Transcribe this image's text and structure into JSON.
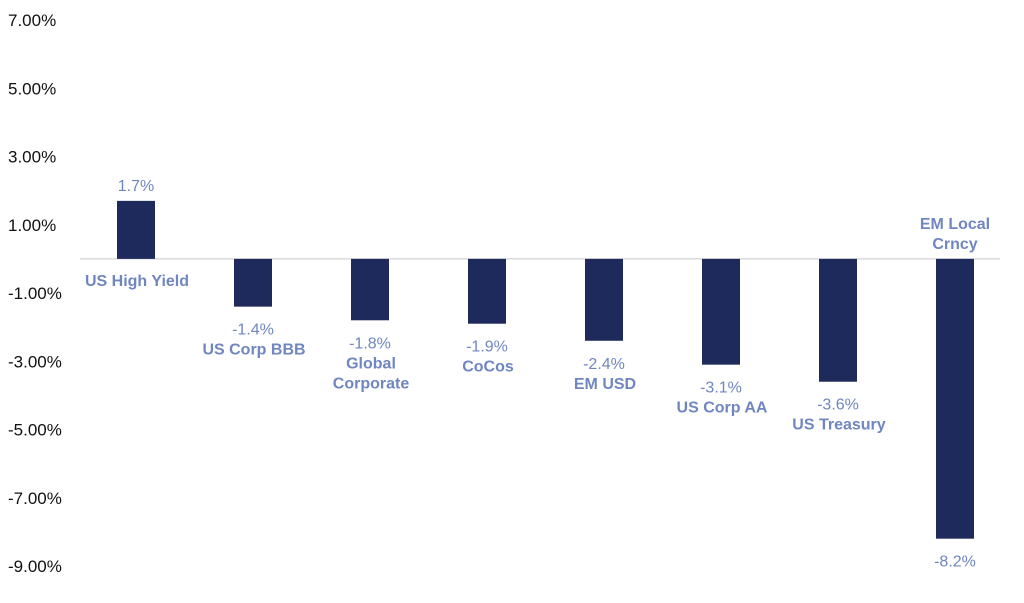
{
  "chart_data": {
    "type": "bar",
    "title": "",
    "xlabel": "",
    "ylabel": "",
    "ylim": [
      -9,
      7
    ],
    "yticks": [
      "7.00%",
      "5.00%",
      "3.00%",
      "1.00%",
      "-1.00%",
      "-3.00%",
      "-5.00%",
      "-7.00%",
      "-9.00%"
    ],
    "categories": [
      "US High Yield",
      "US Corp BBB",
      "Global Corporate",
      "CoCos",
      "EM USD",
      "US Corp AA",
      "US Treasury",
      "EM Local Crncy"
    ],
    "values": [
      1.7,
      -1.4,
      -1.8,
      -1.9,
      -2.4,
      -3.1,
      -3.6,
      -8.2
    ],
    "value_labels": [
      "1.7%",
      "-1.4%",
      "-1.8%",
      "-1.9%",
      "-2.4%",
      "-3.1%",
      "-3.6%",
      "-8.2%"
    ],
    "category_lines": [
      [
        "US High Yield"
      ],
      [
        "US Corp BBB"
      ],
      [
        "Global",
        "Corporate"
      ],
      [
        "CoCos"
      ],
      [
        "EM USD"
      ],
      [
        "US Corp AA"
      ],
      [
        "US Treasury"
      ],
      [
        "EM Local",
        "Crncy"
      ]
    ],
    "grid": false,
    "legend": "none",
    "colors": {
      "bar": "#1f2a5c",
      "labels": "#6f86c1",
      "axis": "#c8c8c8",
      "ticks": "#111111"
    }
  }
}
